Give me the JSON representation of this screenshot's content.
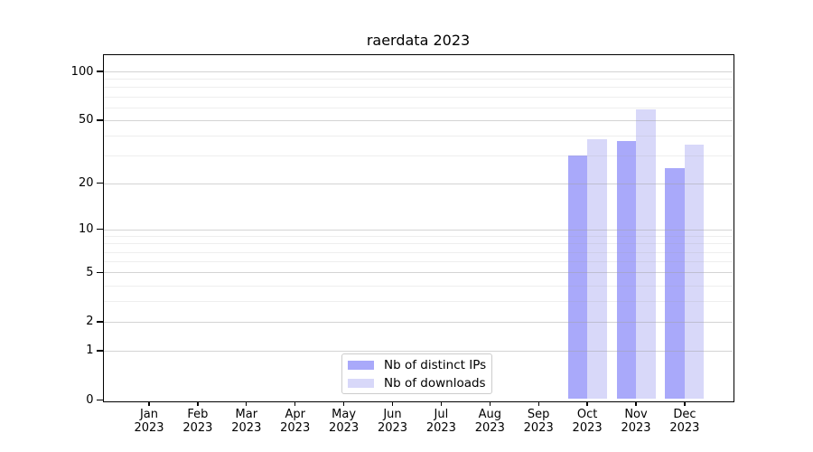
{
  "title": "raerdata 2023",
  "legend": {
    "items": [
      {
        "label": "Nb of distinct IPs"
      },
      {
        "label": "Nb of downloads"
      }
    ]
  },
  "colors": {
    "bar_distinct_ips": "#a9a9fa",
    "bar_downloads": "#d8d8f9",
    "grid_major": "rgba(160,160,160,0.45)",
    "grid_minor": "rgba(160,160,160,0.18)",
    "spine": "#000000",
    "legend_border": "#cccccc",
    "text": "#000000"
  },
  "chart_data": {
    "type": "bar",
    "title": "raerdata 2023",
    "months": [
      "Jan",
      "Feb",
      "Mar",
      "Apr",
      "May",
      "Jun",
      "Jul",
      "Aug",
      "Sep",
      "Oct",
      "Nov",
      "Dec"
    ],
    "year_label": "2023",
    "categories": [
      "Jan 2023",
      "Feb 2023",
      "Mar 2023",
      "Apr 2023",
      "May 2023",
      "Jun 2023",
      "Jul 2023",
      "Aug 2023",
      "Sep 2023",
      "Oct 2023",
      "Nov 2023",
      "Dec 2023"
    ],
    "series": [
      {
        "name": "Nb of distinct IPs",
        "color": "#a9a9fa",
        "values": [
          0,
          0,
          0,
          0,
          0,
          0,
          0,
          0,
          0,
          30,
          37,
          25
        ]
      },
      {
        "name": "Nb of downloads",
        "color": "#d8d8f9",
        "values": [
          0,
          0,
          0,
          0,
          0,
          0,
          0,
          0,
          0,
          38,
          58,
          35
        ]
      }
    ],
    "xlabel": "",
    "ylabel": "",
    "y_axis": {
      "scale": "log1p",
      "major_ticks": [
        0,
        1,
        2,
        5,
        10,
        20,
        50,
        100
      ],
      "minor_ticks": [
        3,
        4,
        6,
        7,
        8,
        9,
        30,
        40,
        60,
        70,
        80,
        90
      ],
      "ylim": [
        0,
        126
      ]
    },
    "grid": true,
    "grid_on_top_of_bars": true,
    "legend_position": "lower center"
  }
}
